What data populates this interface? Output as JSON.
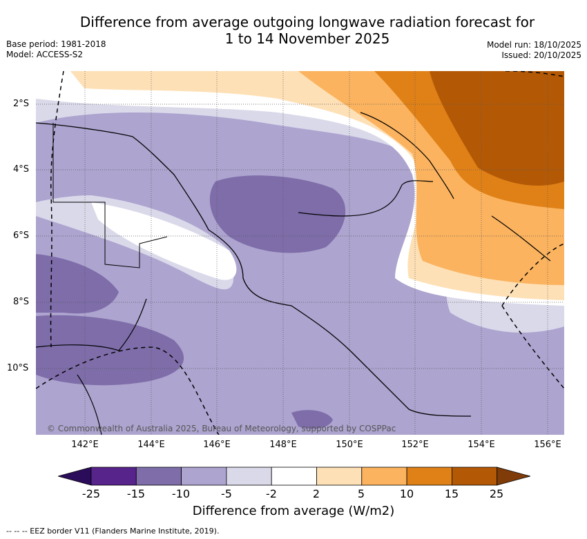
{
  "title": {
    "line1": "Difference from average outgoing longwave radiation forecast for",
    "line2": "1 to 14 November 2025"
  },
  "meta_left": {
    "base_period": "Base period: 1981-2018",
    "model": "Model: ACCESS-S2"
  },
  "meta_right": {
    "model_run": "Model run: 18/10/2025",
    "issued": "Issued: 20/10/2025"
  },
  "map": {
    "lat_labels": [
      "2°S",
      "4°S",
      "6°S",
      "8°S",
      "10°S"
    ],
    "lon_labels": [
      "142°E",
      "144°E",
      "146°E",
      "148°E",
      "150°E",
      "152°E",
      "154°E",
      "156°E"
    ],
    "credit": "© Commonwealth of Australia 2025, Bureau of Meteorology, supported by COSPPac"
  },
  "colorbar": {
    "ticks": [
      "-25",
      "-15",
      "-10",
      "-5",
      "-2",
      "2",
      "5",
      "10",
      "15",
      "25"
    ],
    "colors": [
      "#2b0c5b",
      "#57248b",
      "#7e6da9",
      "#ada4cf",
      "#d9d9ea",
      "#ffffff",
      "#fee0b6",
      "#fbb35f",
      "#e08117",
      "#b35906",
      "#7f3b08"
    ],
    "title": "Difference from average (W/m2)"
  },
  "footer": "-- -- -- EEZ border V11 (Flanders Marine Institute, 2019)."
}
